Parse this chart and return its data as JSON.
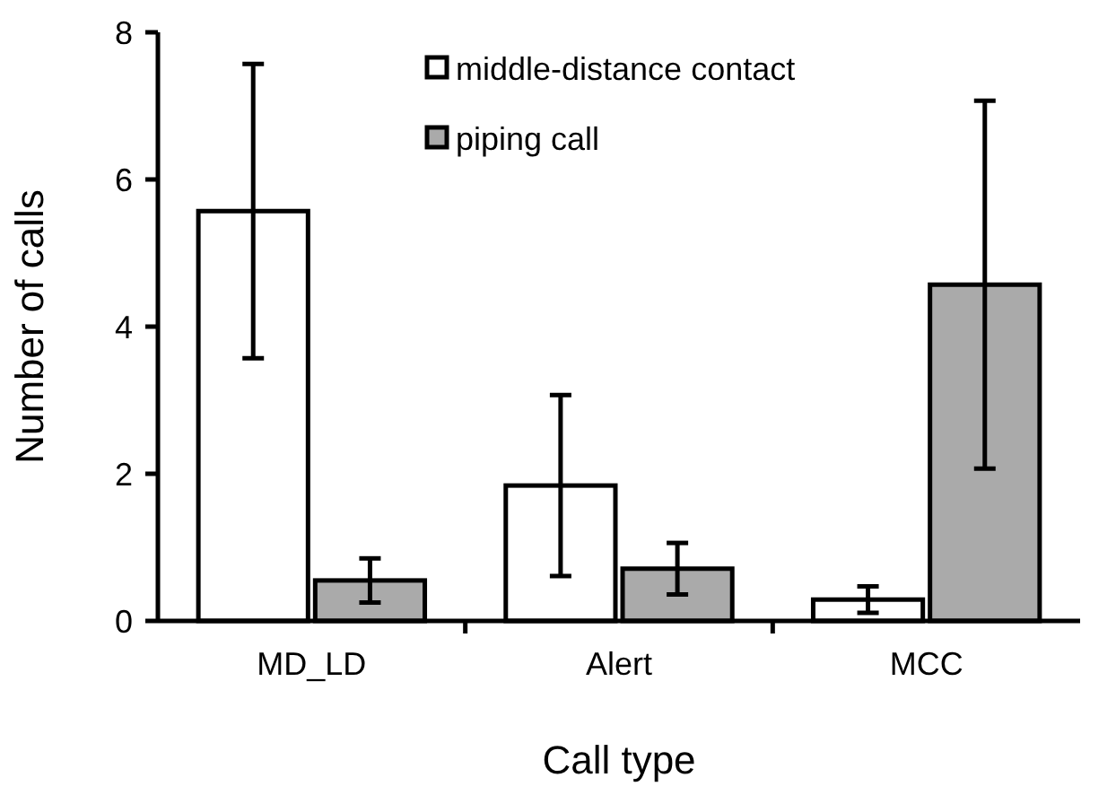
{
  "chart_data": {
    "type": "bar",
    "xlabel": "Call type",
    "ylabel": "Number of calls",
    "categories": [
      "MD_LD",
      "Alert",
      "MCC"
    ],
    "series": [
      {
        "name": "middle-distance contact",
        "color": "#ffffff",
        "values": [
          5.57,
          1.84,
          0.29
        ],
        "errors": [
          2.0,
          1.23,
          0.18
        ]
      },
      {
        "name": "piping call",
        "color": "#aaaaaa",
        "values": [
          0.55,
          0.71,
          4.57
        ],
        "errors": [
          0.3,
          0.35,
          2.5
        ]
      }
    ],
    "ylim": [
      0,
      8
    ],
    "yticks": [
      0,
      2,
      4,
      6,
      8
    ],
    "grid": false,
    "legend": "top right"
  }
}
